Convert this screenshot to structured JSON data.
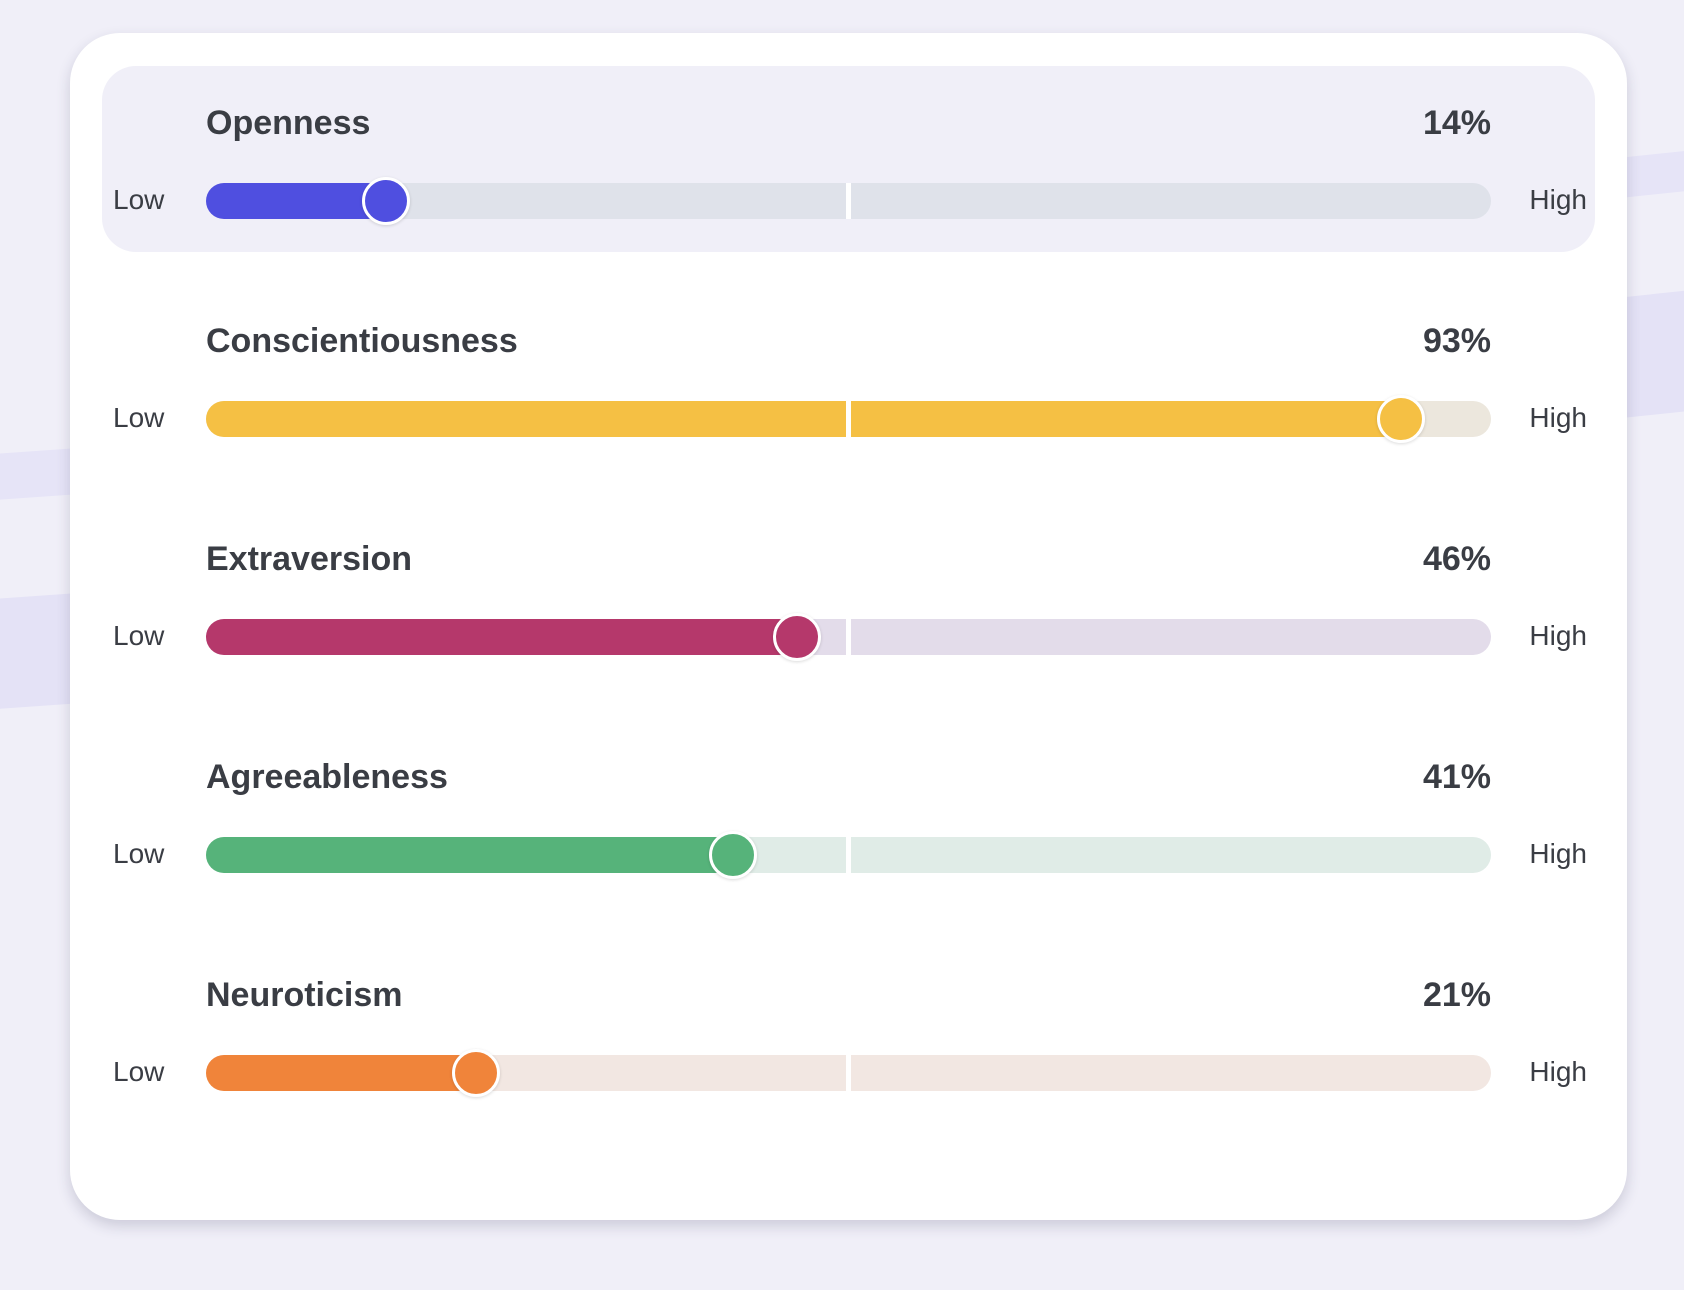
{
  "scale": {
    "low_label": "Low",
    "high_label": "High"
  },
  "traits": [
    {
      "name": "Openness",
      "percent_label": "14%",
      "value": 14,
      "fill_color": "#4f4fe0",
      "track_color": "#dfe2ea",
      "highlighted": true
    },
    {
      "name": "Conscientiousness",
      "percent_label": "93%",
      "value": 93,
      "fill_color": "#f5c044",
      "track_color": "#ece7dd",
      "highlighted": false
    },
    {
      "name": "Extraversion",
      "percent_label": "46%",
      "value": 46,
      "fill_color": "#b5386b",
      "track_color": "#e3dcea",
      "highlighted": false
    },
    {
      "name": "Agreeableness",
      "percent_label": "41%",
      "value": 41,
      "fill_color": "#56b37a",
      "track_color": "#e0ece7",
      "highlighted": false
    },
    {
      "name": "Neuroticism",
      "percent_label": "21%",
      "value": 21,
      "fill_color": "#f0843a",
      "track_color": "#f2e7e2",
      "highlighted": false
    }
  ]
}
